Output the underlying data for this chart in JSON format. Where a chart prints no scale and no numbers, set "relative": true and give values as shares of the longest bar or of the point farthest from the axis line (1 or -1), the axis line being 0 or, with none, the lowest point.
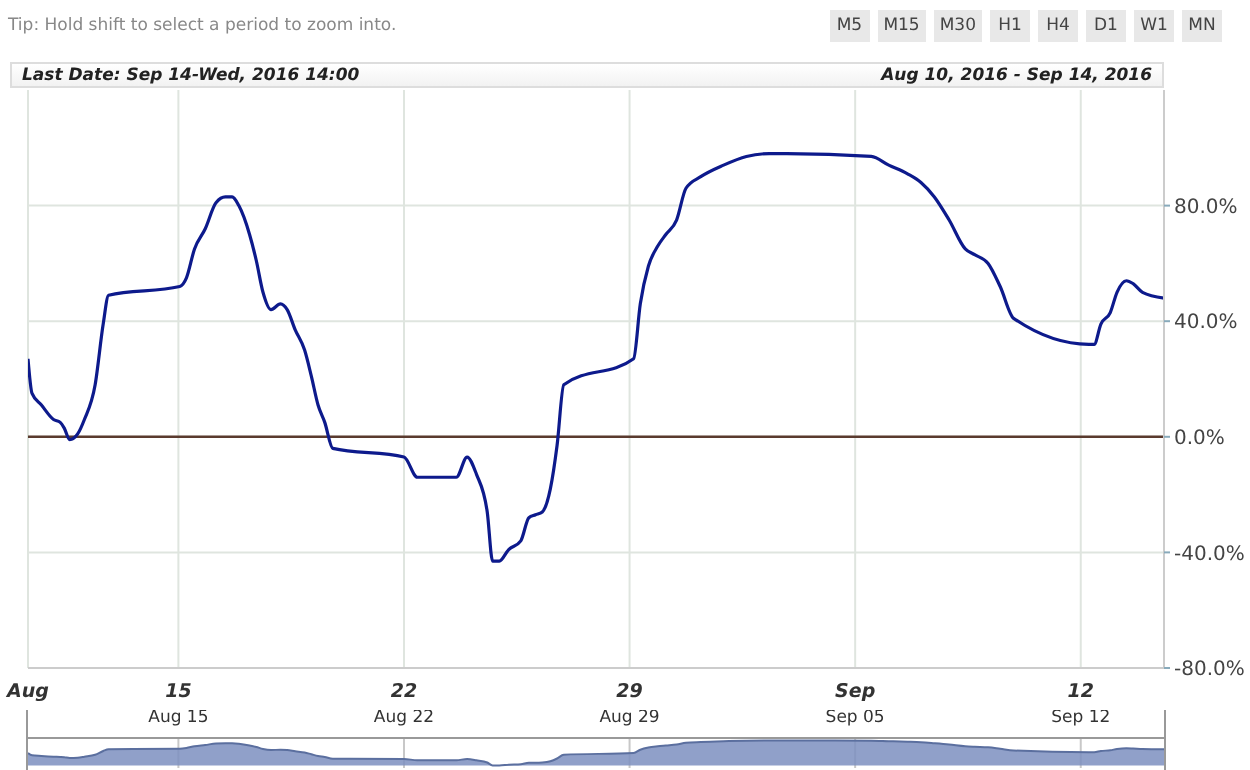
{
  "chart_data": [
    {
      "type": "line",
      "title": "Last Date: Sep 14-Wed, 2016 14:00",
      "subtitle": "Aug 10, 2016 - Sep 14, 2016",
      "annotations": [
        "Tip: Hold shift to select a period to zoom into.",
        "M5",
        "M15",
        "M30",
        "H1",
        "H4",
        "D1",
        "W1",
        "MN"
      ],
      "x": [
        "2016-08-10T08:00",
        "2016-08-10T11:00",
        "2016-08-10T18:00",
        "2016-08-11T03:00",
        "2016-08-11T08:00",
        "2016-08-11T11:00",
        "2016-08-11T15:00",
        "2016-08-11T21:00",
        "2016-08-12T02:00",
        "2016-08-12T10:00",
        "2016-08-12T16:00",
        "2016-08-12T20:00",
        "2016-08-15T01:00",
        "2016-08-15T06:00",
        "2016-08-15T12:00",
        "2016-08-15T20:00",
        "2016-08-16T04:00",
        "2016-08-16T11:00",
        "2016-08-16T16:00",
        "2016-08-16T21:00",
        "2016-08-17T05:00",
        "2016-08-17T10:00",
        "2016-08-17T15:00",
        "2016-08-17T21:00",
        "2016-08-18T04:00",
        "2016-08-18T09:00",
        "2016-08-18T15:00",
        "2016-08-18T22:00",
        "2016-08-19T03:00",
        "2016-08-19T08:00",
        "2016-08-19T13:00",
        "2016-08-19T19:00",
        "2016-08-22T00:00",
        "2016-08-22T10:00",
        "2016-08-22T18:00",
        "2016-08-23T02:00",
        "2016-08-23T15:00",
        "2016-08-23T23:00",
        "2016-08-24T06:00",
        "2016-08-24T14:00",
        "2016-08-24T18:00",
        "2016-08-24T23:00",
        "2016-08-25T06:00",
        "2016-08-25T15:00",
        "2016-08-25T21:00",
        "2016-08-26T02:00",
        "2016-08-26T07:00",
        "2016-08-26T13:00",
        "2016-08-26T18:00",
        "2016-08-26T23:00",
        "2016-08-29T03:00",
        "2016-08-29T08:00",
        "2016-08-29T14:00",
        "2016-08-29T21:00",
        "2016-08-30T03:00",
        "2016-08-30T11:00",
        "2016-08-30T18:00",
        "2016-08-31T05:00",
        "2016-08-31T22:00",
        "2016-09-01T15:00",
        "2016-09-02T08:00",
        "2016-09-02T21:00",
        "2016-09-05T12:00",
        "2016-09-06T01:00",
        "2016-09-06T15:00",
        "2016-09-07T01:00",
        "2016-09-07T11:00",
        "2016-09-07T22:00",
        "2016-09-08T10:00",
        "2016-09-08T17:00",
        "2016-09-09T03:00",
        "2016-09-09T12:00",
        "2016-09-09T22:00",
        "2016-09-12T06:00",
        "2016-09-12T10:00",
        "2016-09-12T15:00",
        "2016-09-12T22:00",
        "2016-09-13T03:00",
        "2016-09-13T10:00",
        "2016-09-13T15:00",
        "2016-09-13T22:00",
        "2016-09-14T14:00"
      ],
      "values": [
        27,
        15,
        11,
        6,
        5,
        3,
        -1,
        1,
        6,
        18,
        39,
        49,
        52,
        55,
        65,
        72,
        81,
        83,
        83,
        80,
        70,
        61,
        50,
        44,
        46,
        44,
        37,
        30,
        21,
        11,
        5,
        -4,
        -7,
        -14,
        -14,
        -14,
        -14,
        -7,
        -13,
        -26,
        -43,
        -43,
        -39,
        -36,
        -28,
        -27,
        -26,
        -18,
        -3,
        18,
        27,
        46,
        59,
        66,
        70,
        75,
        86,
        90,
        94,
        97,
        98,
        98,
        97,
        94,
        91,
        88,
        83,
        75,
        65,
        63,
        60,
        52,
        41,
        32,
        32,
        39,
        43,
        50,
        54,
        53,
        50,
        48
      ],
      "color": "#0d1a8c",
      "xlim": [
        "2016-08-10T08:00",
        "2016-09-14T14:00"
      ],
      "xticks": [
        {
          "value": "2016-08-10T08:00",
          "label": "Aug"
        },
        {
          "value": "2016-08-15",
          "label": "15"
        },
        {
          "value": "2016-08-22",
          "label": "22"
        },
        {
          "value": "2016-08-29",
          "label": "29"
        },
        {
          "value": "2016-09-05",
          "label": "Sep"
        },
        {
          "value": "2016-09-12",
          "label": "12"
        }
      ],
      "ylim": [
        -80,
        120
      ],
      "yticks": [
        {
          "value": -80,
          "label": "-80.0%"
        },
        {
          "value": -40,
          "label": "-40.0%"
        },
        {
          "value": 0,
          "label": "0.0%"
        },
        {
          "value": 40,
          "label": "40.0%"
        },
        {
          "value": 80,
          "label": "80.0%"
        }
      ],
      "ref_lines": [
        {
          "axis": "y",
          "value": 0,
          "color": "#5a3a2e"
        }
      ],
      "grid": true,
      "legend": false,
      "marker": "none",
      "line_style": "solid"
    },
    {
      "type": "area",
      "x": [
        "2016-08-10T08:00",
        "2016-08-10T11:00",
        "2016-08-10T18:00",
        "2016-08-11T03:00",
        "2016-08-11T08:00",
        "2016-08-11T11:00",
        "2016-08-11T15:00",
        "2016-08-11T21:00",
        "2016-08-12T02:00",
        "2016-08-12T10:00",
        "2016-08-12T16:00",
        "2016-08-12T20:00",
        "2016-08-15T01:00",
        "2016-08-15T06:00",
        "2016-08-15T12:00",
        "2016-08-15T20:00",
        "2016-08-16T04:00",
        "2016-08-16T11:00",
        "2016-08-16T16:00",
        "2016-08-16T21:00",
        "2016-08-17T05:00",
        "2016-08-17T10:00",
        "2016-08-17T15:00",
        "2016-08-17T21:00",
        "2016-08-18T04:00",
        "2016-08-18T09:00",
        "2016-08-18T15:00",
        "2016-08-18T22:00",
        "2016-08-19T03:00",
        "2016-08-19T08:00",
        "2016-08-19T13:00",
        "2016-08-19T19:00",
        "2016-08-22T00:00",
        "2016-08-22T10:00",
        "2016-08-22T18:00",
        "2016-08-23T02:00",
        "2016-08-23T15:00",
        "2016-08-23T23:00",
        "2016-08-24T06:00",
        "2016-08-24T14:00",
        "2016-08-24T18:00",
        "2016-08-24T23:00",
        "2016-08-25T06:00",
        "2016-08-25T15:00",
        "2016-08-25T21:00",
        "2016-08-26T02:00",
        "2016-08-26T07:00",
        "2016-08-26T13:00",
        "2016-08-26T18:00",
        "2016-08-26T23:00",
        "2016-08-29T03:00",
        "2016-08-29T08:00",
        "2016-08-29T14:00",
        "2016-08-29T21:00",
        "2016-08-30T03:00",
        "2016-08-30T11:00",
        "2016-08-30T18:00",
        "2016-08-31T05:00",
        "2016-08-31T22:00",
        "2016-09-01T15:00",
        "2016-09-02T08:00",
        "2016-09-02T21:00",
        "2016-09-05T12:00",
        "2016-09-06T01:00",
        "2016-09-06T15:00",
        "2016-09-07T01:00",
        "2016-09-07T11:00",
        "2016-09-07T22:00",
        "2016-09-08T10:00",
        "2016-09-08T17:00",
        "2016-09-09T03:00",
        "2016-09-09T12:00",
        "2016-09-09T22:00",
        "2016-09-12T06:00",
        "2016-09-12T10:00",
        "2016-09-12T15:00",
        "2016-09-12T22:00",
        "2016-09-13T03:00",
        "2016-09-13T10:00",
        "2016-09-13T15:00",
        "2016-09-13T22:00",
        "2016-09-14T14:00"
      ],
      "values": [
        0.5,
        0.41,
        0.38,
        0.35,
        0.34,
        0.33,
        0.3,
        0.31,
        0.35,
        0.43,
        0.58,
        0.65,
        0.67,
        0.7,
        0.77,
        0.82,
        0.88,
        0.89,
        0.89,
        0.87,
        0.8,
        0.74,
        0.66,
        0.62,
        0.63,
        0.62,
        0.57,
        0.52,
        0.45,
        0.38,
        0.34,
        0.27,
        0.26,
        0.21,
        0.21,
        0.21,
        0.21,
        0.26,
        0.21,
        0.12,
        0,
        0,
        0.03,
        0.05,
        0.11,
        0.11,
        0.12,
        0.17,
        0.28,
        0.43,
        0.5,
        0.63,
        0.72,
        0.77,
        0.8,
        0.84,
        0.91,
        0.94,
        0.97,
        0.99,
        1,
        1,
        0.99,
        0.97,
        0.95,
        0.93,
        0.89,
        0.84,
        0.77,
        0.75,
        0.73,
        0.67,
        0.6,
        0.53,
        0.53,
        0.58,
        0.61,
        0.66,
        0.69,
        0.68,
        0.66,
        0.65
      ],
      "relative": true,
      "color": "#7d8fbf",
      "xlim": [
        "2016-08-10T08:00",
        "2016-09-14T14:00"
      ],
      "xticks": [
        {
          "value": "2016-08-15",
          "label": "Aug 15"
        },
        {
          "value": "2016-08-22",
          "label": "Aug 22"
        },
        {
          "value": "2016-08-29",
          "label": "Aug 29"
        },
        {
          "value": "2016-09-05",
          "label": "Sep 05"
        },
        {
          "value": "2016-09-12",
          "label": "Sep 12"
        }
      ],
      "tick_labels": "x",
      "grid": "x"
    }
  ]
}
